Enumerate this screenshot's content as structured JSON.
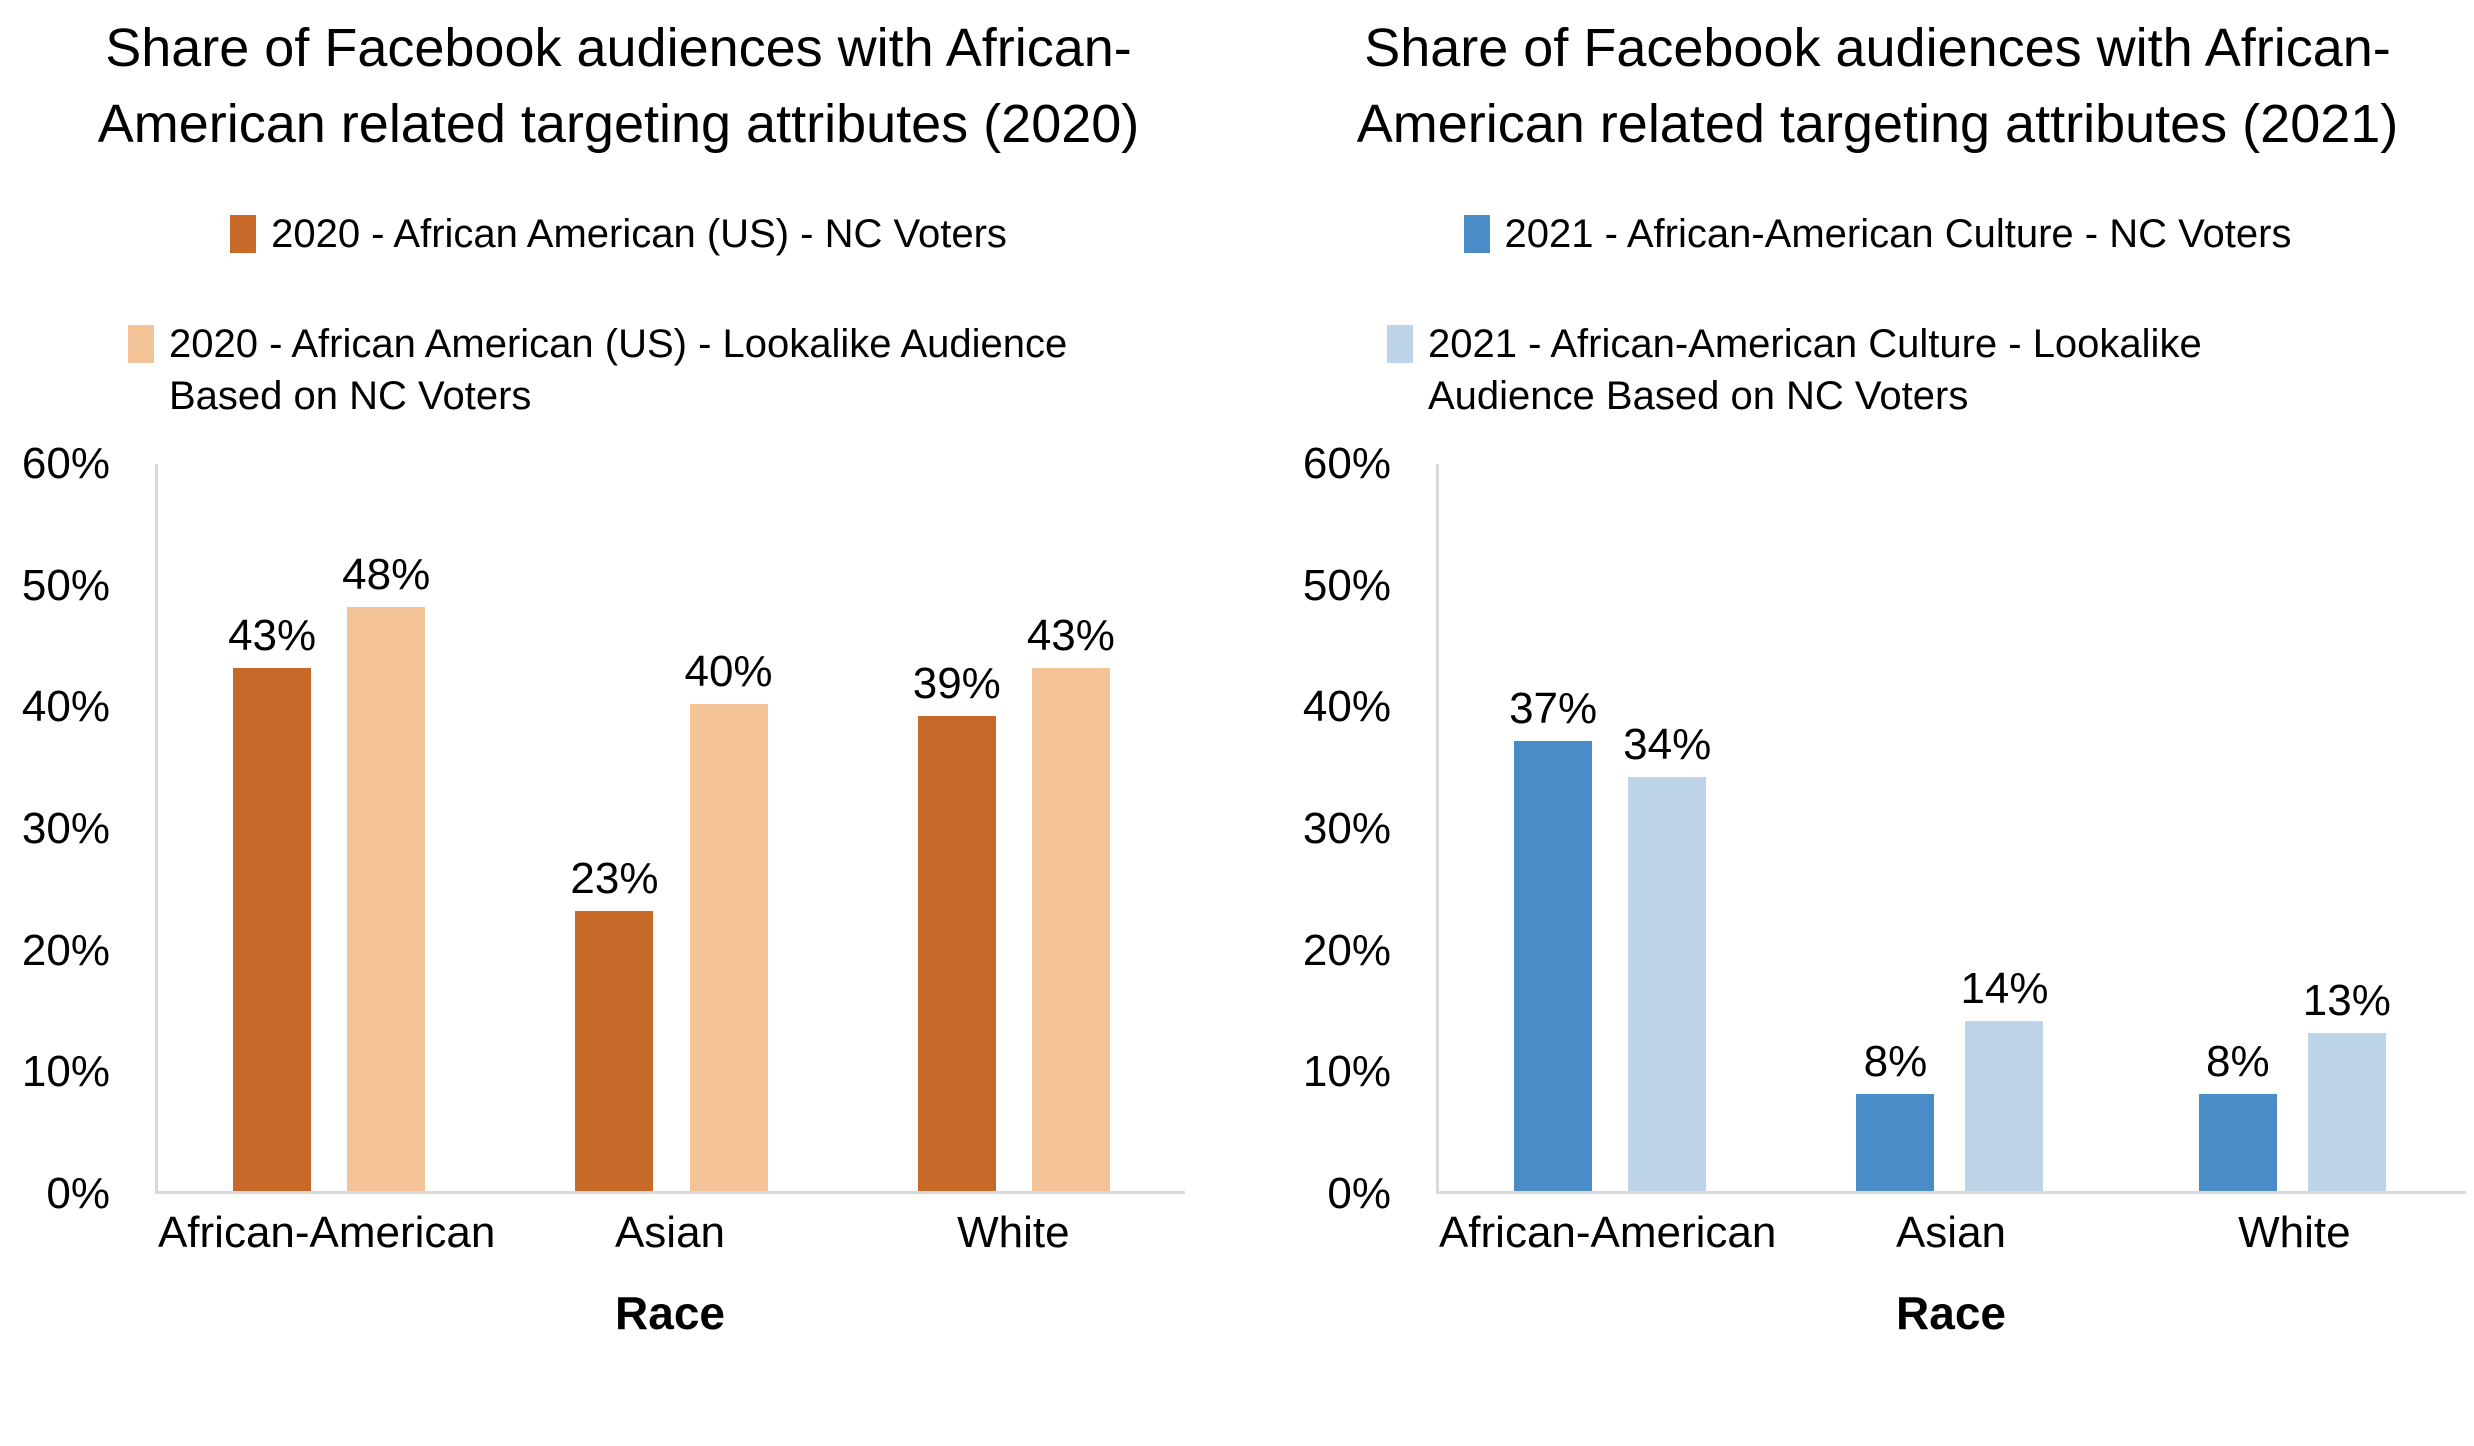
{
  "page": {
    "background": "#FFFFFF"
  },
  "colors": {
    "axis_line": "#D9D9D9",
    "text": "#000000"
  },
  "chart_data": [
    {
      "type": "bar",
      "title": "Share of Facebook audiences with African-American related targeting attributes (2020)",
      "xlabel": "Race",
      "categories": [
        "African-American",
        "Asian",
        "White"
      ],
      "series": [
        {
          "name": "2020 - African American (US) - NC Voters",
          "color": "#C76A29",
          "values": [
            43,
            23,
            39
          ]
        },
        {
          "name": "2020 - African American (US) - Lookalike Audience Based on NC Voters",
          "color": "#F4C498",
          "values": [
            48,
            40,
            43
          ]
        }
      ],
      "data_labels": [
        "43%",
        "23%",
        "39%",
        "48%",
        "40%",
        "43%"
      ],
      "value_suffix": "%",
      "ylim": [
        0,
        60
      ],
      "y_ticks": [
        "60%",
        "50%",
        "40%",
        "30%",
        "20%",
        "10%",
        "0%"
      ],
      "grid": false,
      "legend_position": "top"
    },
    {
      "type": "bar",
      "title": "Share of Facebook audiences with African-American related targeting attributes (2021)",
      "xlabel": "Race",
      "categories": [
        "African-American",
        "Asian",
        "White"
      ],
      "series": [
        {
          "name": "2021 - African-American Culture - NC Voters",
          "color": "#4A8CC7",
          "values": [
            37,
            8,
            8
          ]
        },
        {
          "name": "2021 - African-American Culture - Lookalike Audience Based on NC Voters",
          "color": "#BCD3E8",
          "values": [
            34,
            14,
            13
          ]
        }
      ],
      "data_labels": [
        "37%",
        "8%",
        "8%",
        "34%",
        "14%",
        "13%"
      ],
      "value_suffix": "%",
      "ylim": [
        0,
        60
      ],
      "y_ticks": [
        "60%",
        "50%",
        "40%",
        "30%",
        "20%",
        "10%",
        "0%"
      ],
      "grid": false,
      "legend_position": "top"
    }
  ]
}
